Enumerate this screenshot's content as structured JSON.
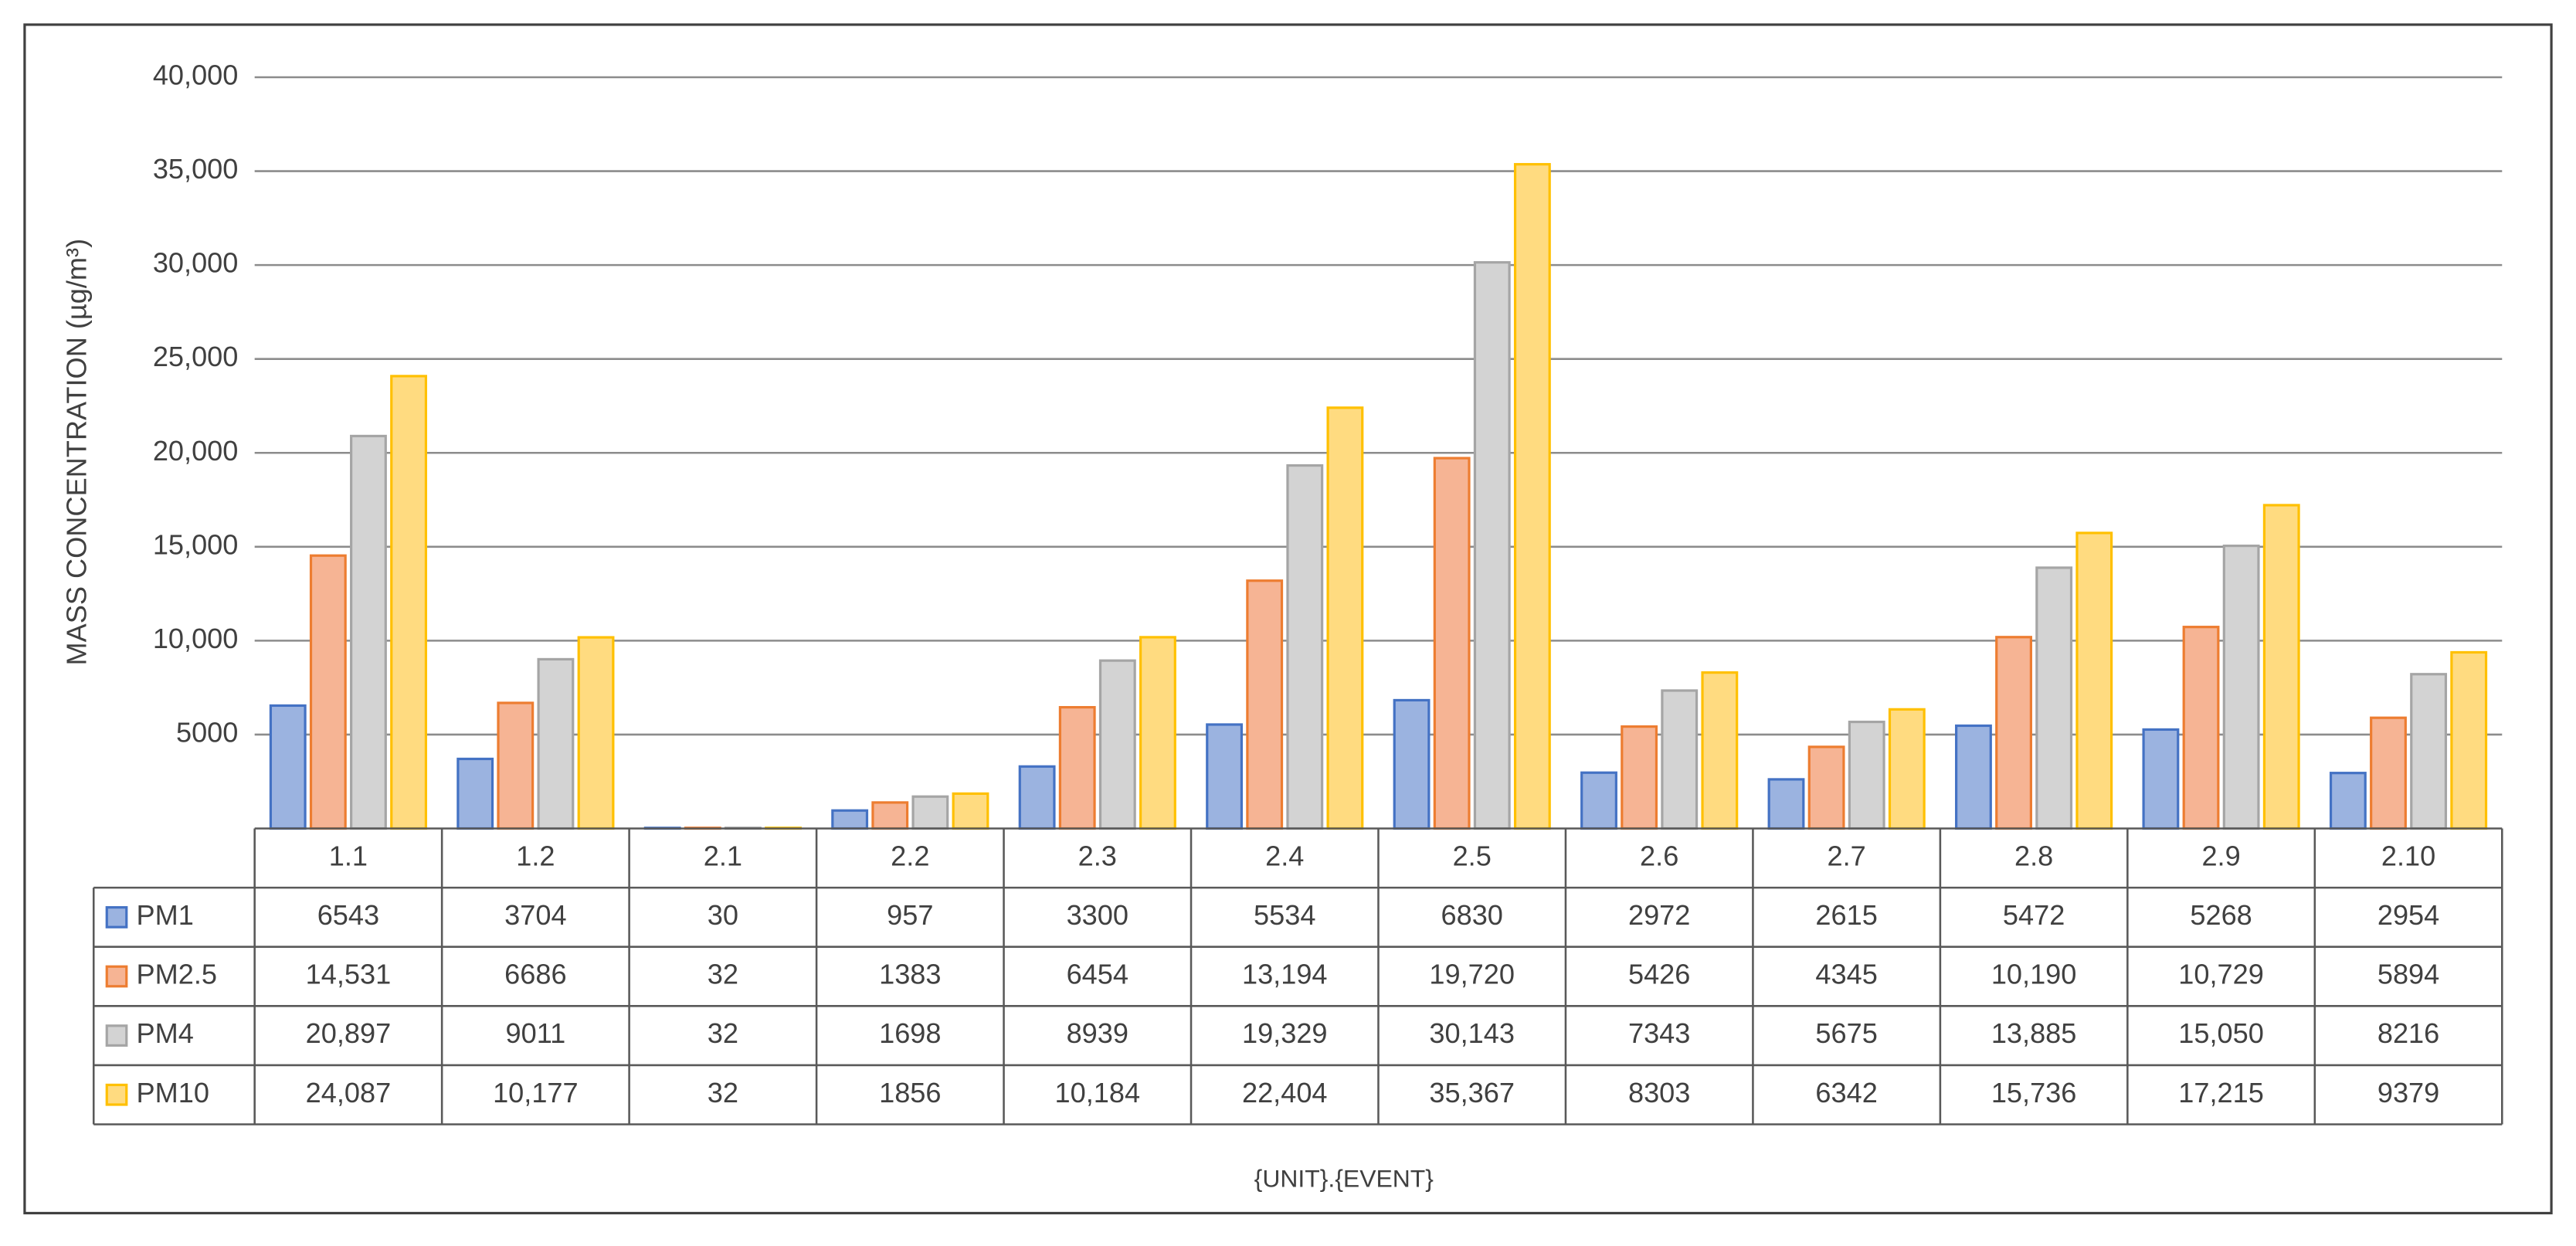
{
  "chart_data": {
    "type": "bar",
    "y_axis_label": "MASS CONCENTRATION (µg/m³)",
    "x_axis_label": "{UNIT}.{EVENT}",
    "categories": [
      "1.1",
      "1.2",
      "2.1",
      "2.2",
      "2.3",
      "2.4",
      "2.5",
      "2.6",
      "2.7",
      "2.8",
      "2.9",
      "2.10"
    ],
    "series": [
      {
        "name": "PM1",
        "color": "#4472c4",
        "fill": "#9bb3e0",
        "values": [
          6543,
          3704,
          30,
          957,
          3300,
          5534,
          6830,
          2972,
          2615,
          5472,
          5268,
          2954
        ],
        "value_labels": [
          "6543",
          "3704",
          "30",
          "957",
          "3300",
          "5534",
          "6830",
          "2972",
          "2615",
          "5472",
          "5268",
          "2954"
        ]
      },
      {
        "name": "PM2.5",
        "color": "#ed7d31",
        "fill": "#f6b494",
        "values": [
          14531,
          6686,
          32,
          1383,
          6454,
          13194,
          19720,
          5426,
          4345,
          10190,
          10729,
          5894
        ],
        "value_labels": [
          "14,531",
          "6686",
          "32",
          "1383",
          "6454",
          "13,194",
          "19,720",
          "5426",
          "4345",
          "10,190",
          "10,729",
          "5894"
        ]
      },
      {
        "name": "PM4",
        "color": "#a5a5a5",
        "fill": "#d3d3d3",
        "values": [
          20897,
          9011,
          32,
          1698,
          8939,
          19329,
          30143,
          7343,
          5675,
          13885,
          15050,
          8216
        ],
        "value_labels": [
          "20,897",
          "9011",
          "32",
          "1698",
          "8939",
          "19,329",
          "30,143",
          "7343",
          "5675",
          "13,885",
          "15,050",
          "8216"
        ]
      },
      {
        "name": "PM10",
        "color": "#ffc000",
        "fill": "#ffdb80",
        "values": [
          24087,
          10177,
          32,
          1856,
          10184,
          22404,
          35367,
          8303,
          6342,
          15736,
          17215,
          9379
        ],
        "value_labels": [
          "24,087",
          "10,177",
          "32",
          "1856",
          "10,184",
          "22,404",
          "35,367",
          "8303",
          "6342",
          "15,736",
          "17,215",
          "9379"
        ]
      }
    ],
    "ylim": [
      0,
      40000
    ],
    "yticks": [
      5000,
      {
        "value": 10000,
        "label": "10,000"
      },
      {
        "value": 15000,
        "label": "15,000"
      },
      {
        "value": 20000,
        "label": "20,000"
      },
      {
        "value": 25000,
        "label": "25,000"
      },
      {
        "value": 30000,
        "label": "30,000"
      },
      {
        "value": 35000,
        "label": "35,000"
      },
      {
        "value": 40000,
        "label": "40,000"
      }
    ],
    "grid": true
  }
}
